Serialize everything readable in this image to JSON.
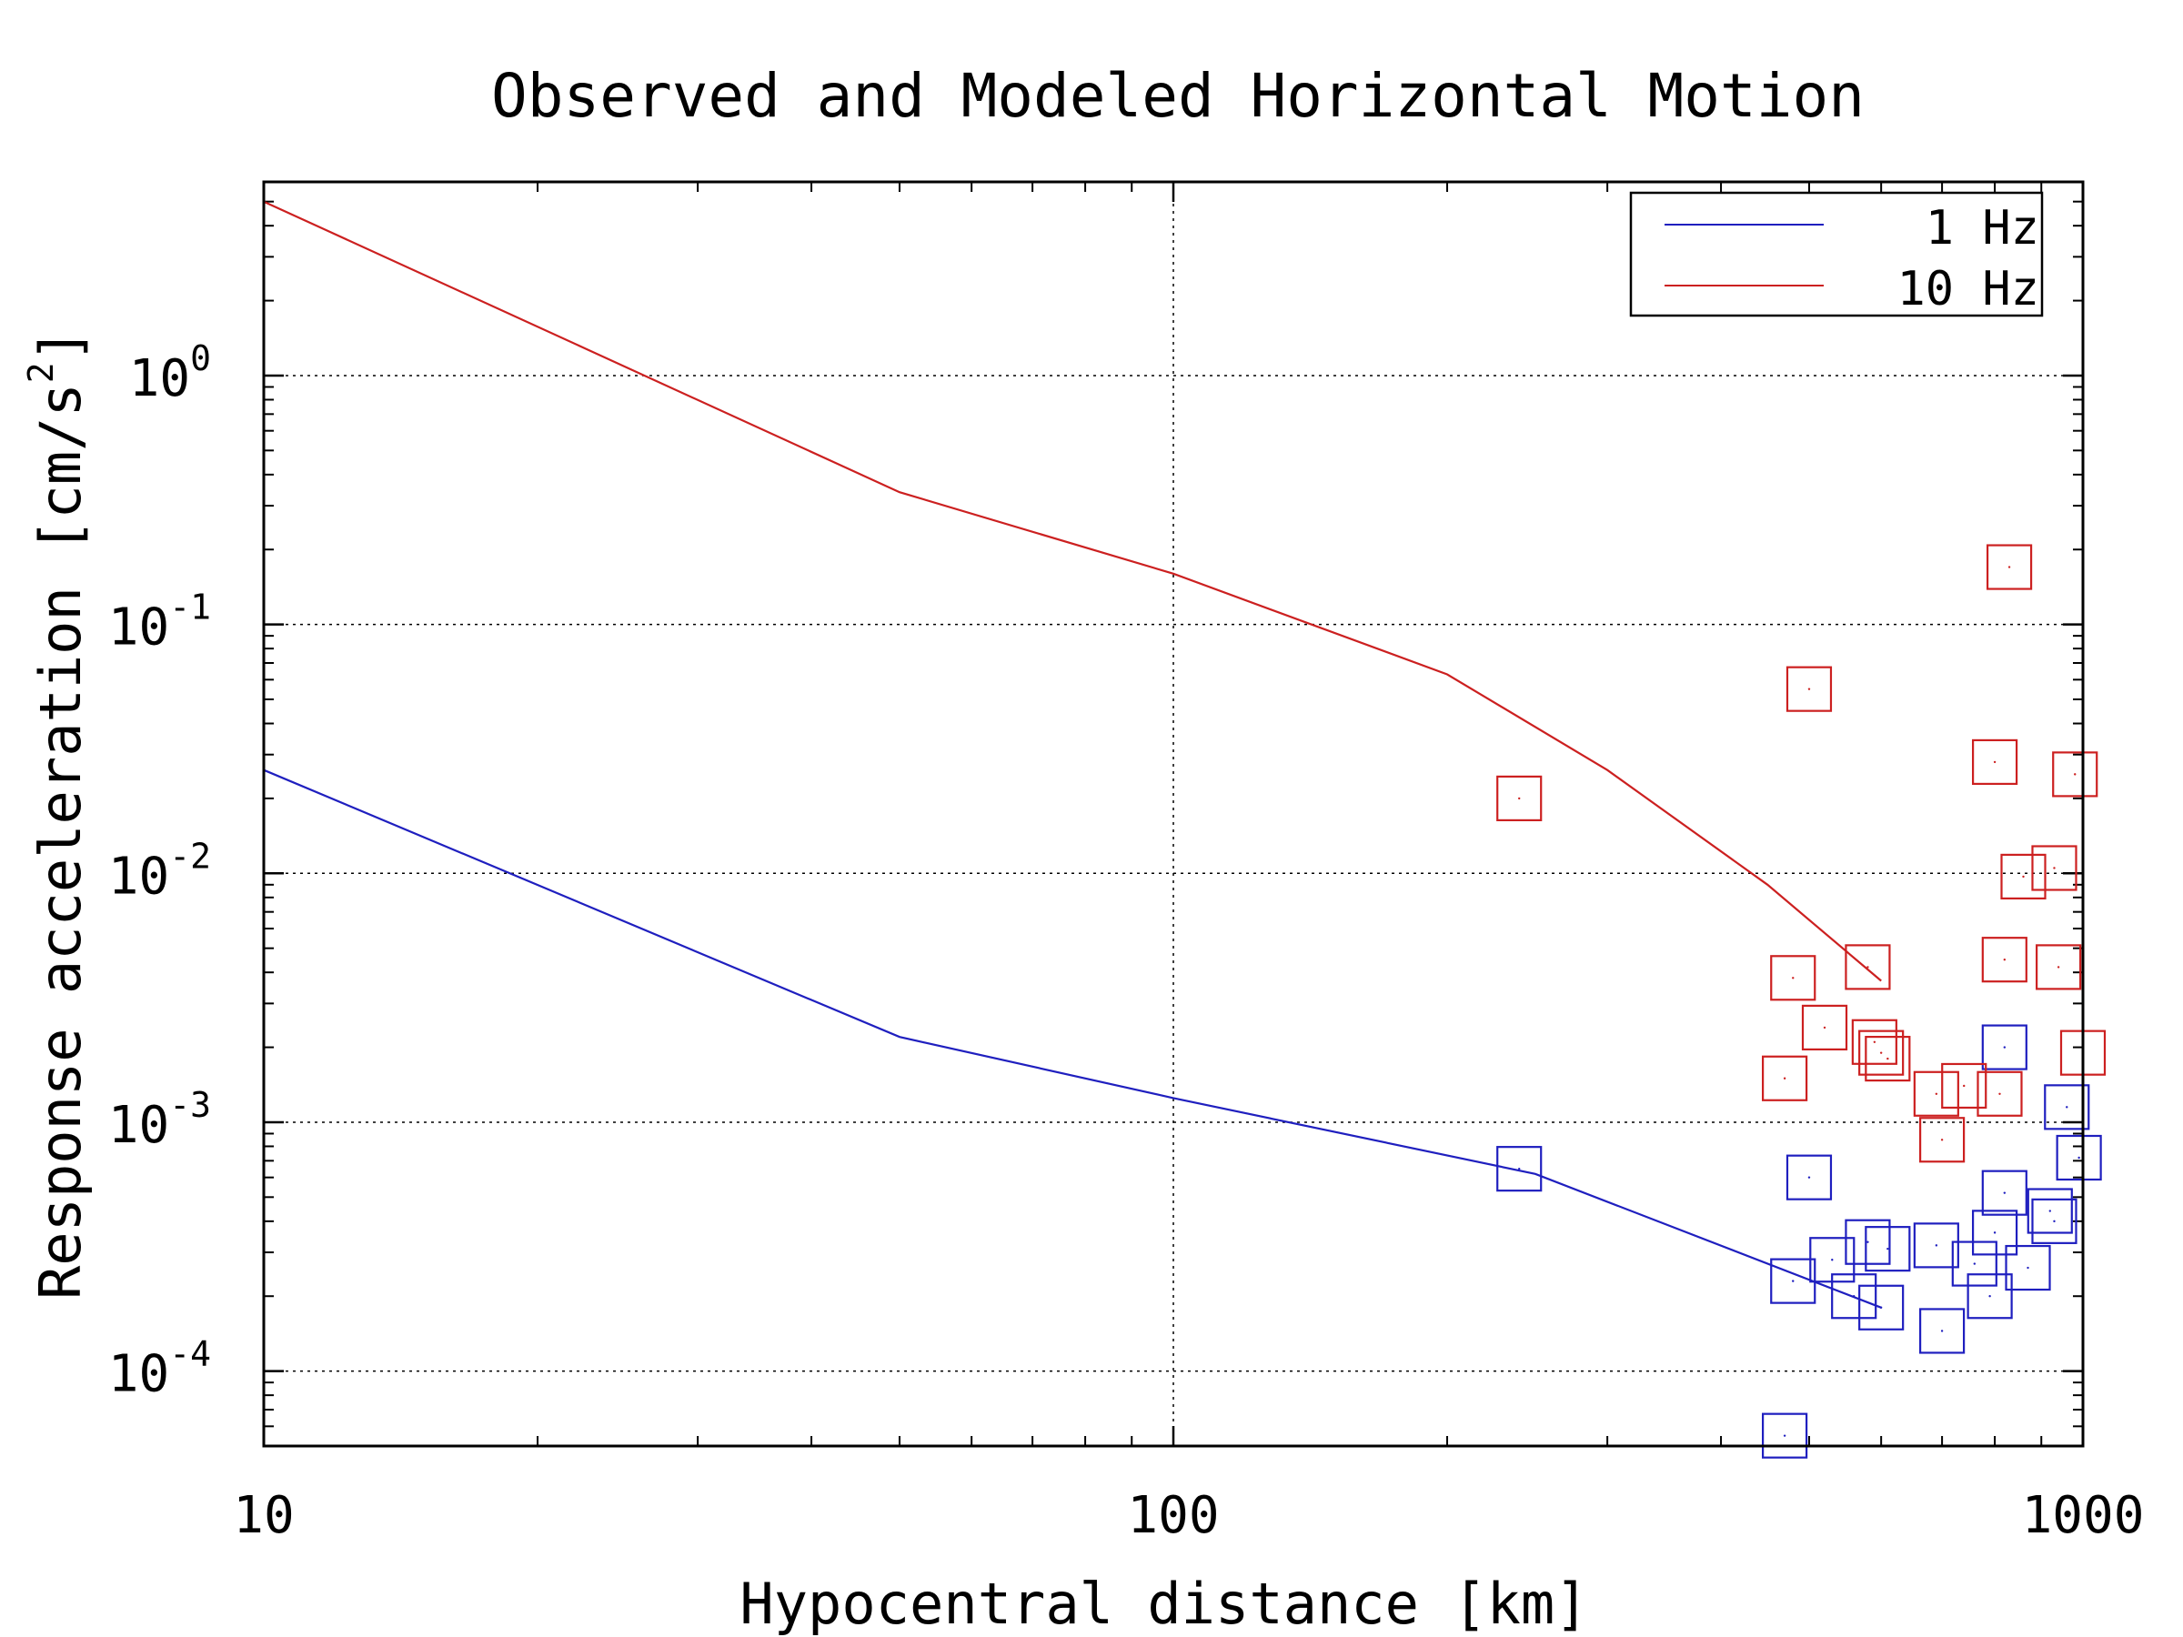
{
  "chart_data": {
    "type": "line+scatter",
    "title": "Observed and Modeled Horizontal Motion",
    "xlabel": "Hypocentral distance [km]",
    "ylabel": "Response acceleration [cm/s",
    "ylabel_exponent": "2",
    "ylabel_suffix": "]",
    "xscale": "log",
    "yscale": "log",
    "xlim": [
      10,
      1000
    ],
    "ylim": [
      5e-05,
      6
    ],
    "grid": true,
    "legend_position": "top-right",
    "x_ticks": [
      {
        "value": 10,
        "label": "10"
      },
      {
        "value": 100,
        "label": "100"
      },
      {
        "value": 1000,
        "label": "1000"
      }
    ],
    "y_ticks": [
      {
        "value": 1,
        "base": "10",
        "exponent": "0"
      },
      {
        "value": 0.1,
        "base": "10",
        "exponent": "-1"
      },
      {
        "value": 0.01,
        "base": "10",
        "exponent": "-2"
      },
      {
        "value": 0.001,
        "base": "10",
        "exponent": "-3"
      },
      {
        "value": 0.0001,
        "base": "10",
        "exponent": "-4"
      }
    ],
    "series": [
      {
        "name": "1 Hz",
        "color": "#1f1fbf",
        "model": [
          [
            10,
            0.026
          ],
          [
            50,
            0.0022
          ],
          [
            100,
            0.00125
          ],
          [
            250,
            0.00062
          ],
          [
            600,
            0.00018
          ]
        ],
        "observed": [
          [
            240,
            0.00065
          ],
          [
            470,
            5.5e-05
          ],
          [
            480,
            0.00023
          ],
          [
            500,
            0.0006
          ],
          [
            530,
            0.00028
          ],
          [
            560,
            0.0002
          ],
          [
            580,
            0.00033
          ],
          [
            600,
            0.00018
          ],
          [
            610,
            0.00031
          ],
          [
            690,
            0.00032
          ],
          [
            700,
            0.000145
          ],
          [
            760,
            0.00027
          ],
          [
            790,
            0.0002
          ],
          [
            800,
            0.00036
          ],
          [
            820,
            0.002
          ],
          [
            820,
            0.00052
          ],
          [
            870,
            0.00026
          ],
          [
            920,
            0.00044
          ],
          [
            930,
            0.0004
          ],
          [
            960,
            0.00115
          ],
          [
            990,
            0.00072
          ]
        ]
      },
      {
        "name": "10 Hz",
        "color": "#cc2020",
        "model": [
          [
            10,
            5.0
          ],
          [
            50,
            0.34
          ],
          [
            100,
            0.16
          ],
          [
            200,
            0.063
          ],
          [
            300,
            0.026
          ],
          [
            450,
            0.009
          ],
          [
            600,
            0.0037
          ]
        ],
        "observed": [
          [
            240,
            0.02
          ],
          [
            470,
            0.0015
          ],
          [
            480,
            0.0038
          ],
          [
            500,
            0.055
          ],
          [
            520,
            0.0024
          ],
          [
            580,
            0.0042
          ],
          [
            590,
            0.0021
          ],
          [
            600,
            0.0019
          ],
          [
            610,
            0.0018
          ],
          [
            690,
            0.0013
          ],
          [
            700,
            0.00085
          ],
          [
            740,
            0.0014
          ],
          [
            800,
            0.028
          ],
          [
            810,
            0.0013
          ],
          [
            820,
            0.0045
          ],
          [
            830,
            0.17
          ],
          [
            860,
            0.0097
          ],
          [
            930,
            0.0105
          ],
          [
            940,
            0.0042
          ],
          [
            980,
            0.025
          ],
          [
            1000,
            0.0019
          ]
        ]
      }
    ]
  }
}
